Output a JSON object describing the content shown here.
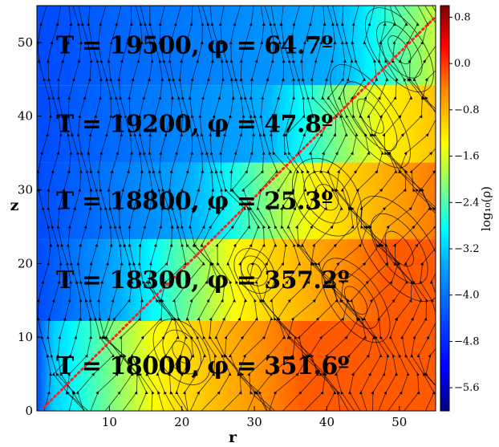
{
  "chart_data": {
    "type": "heatmap",
    "xlabel": "r",
    "ylabel": "z",
    "xlim": [
      0,
      55
    ],
    "ylim": [
      0,
      55
    ],
    "x_ticks": [
      "10",
      "20",
      "30",
      "40",
      "50"
    ],
    "y_ticks": [
      "0",
      "10",
      "20",
      "30",
      "40",
      "50"
    ],
    "x_tick_values": [
      10,
      20,
      30,
      40,
      50
    ],
    "y_tick_values": [
      0,
      10,
      20,
      30,
      40,
      50
    ],
    "colorbar": {
      "label": "log₁₀(ρ)",
      "range": [
        -6.0,
        1.0
      ],
      "ticks": [
        "0.8",
        "0.0",
        "−0.8",
        "−1.6",
        "−2.4",
        "−3.2",
        "−4.0",
        "−4.8",
        "−5.6"
      ],
      "tick_values": [
        0.8,
        0.0,
        -0.8,
        -1.6,
        -2.4,
        -3.2,
        -4.0,
        -4.8,
        -5.6
      ],
      "colormap": [
        "#00007f",
        "#0000ff",
        "#0080ff",
        "#00ffff",
        "#80ff80",
        "#ffff00",
        "#ff8000",
        "#ff0000",
        "#7f0000"
      ]
    },
    "panels": [
      {
        "label": "T = 18000,  φ = 351.6º",
        "z_range": [
          0,
          12.2
        ]
      },
      {
        "label": "T = 18300,  φ = 357.2º",
        "z_range": [
          12.2,
          23.3
        ]
      },
      {
        "label": "T = 18800,  φ = 25.3º",
        "z_range": [
          23.3,
          33.7
        ]
      },
      {
        "label": "T = 19200,  φ = 47.8º",
        "z_range": [
          33.7,
          44.2
        ]
      },
      {
        "label": "T = 19500,  φ = 64.7º",
        "z_range": [
          44.2,
          55
        ]
      }
    ],
    "overlay": {
      "diagonal_line": {
        "x": [
          1,
          55
        ],
        "y": [
          0.5,
          53.5
        ],
        "color": "#ff2020",
        "style": "dotted"
      },
      "streamlines": "black with arrows"
    }
  }
}
